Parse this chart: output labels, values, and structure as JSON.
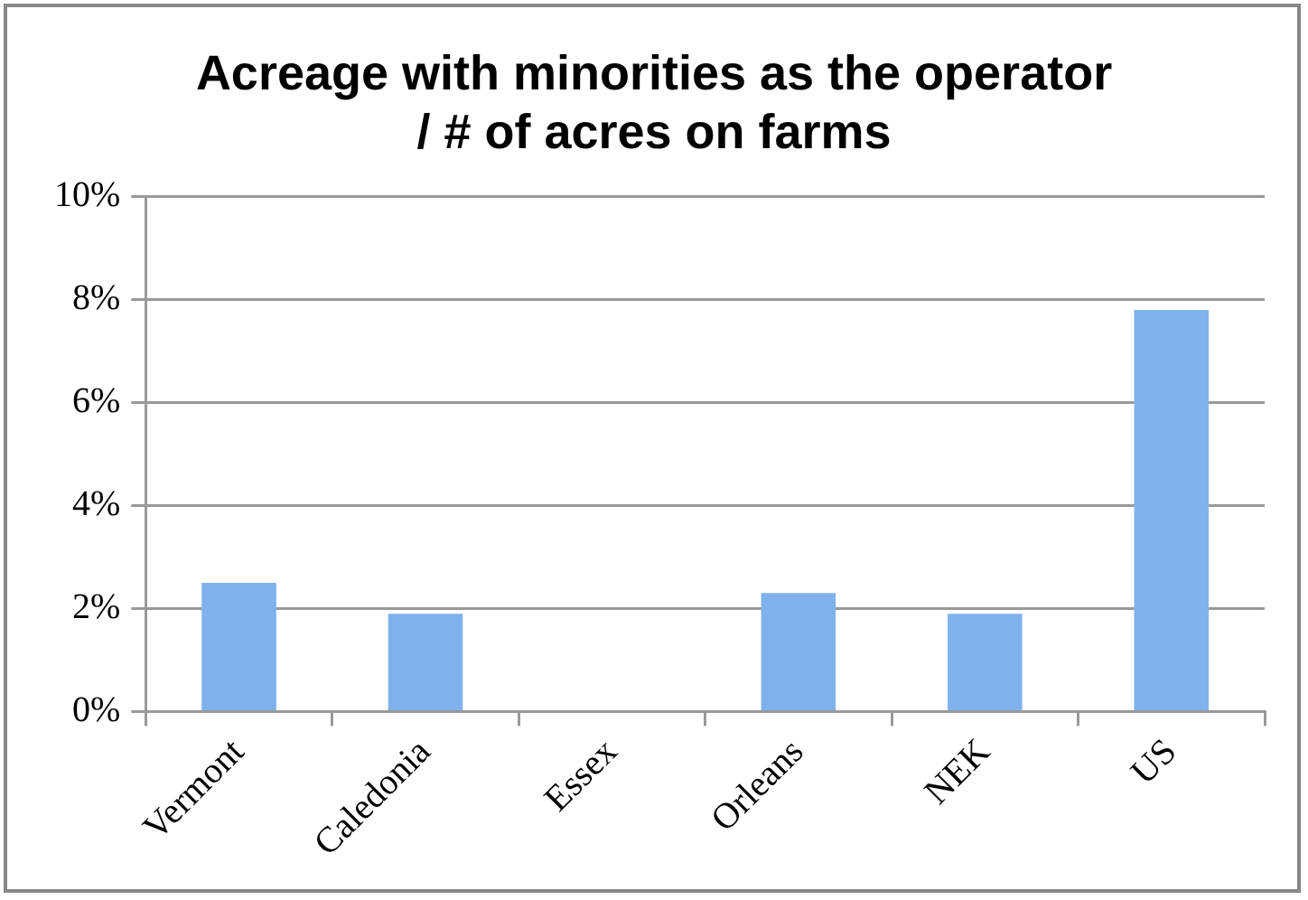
{
  "chart_data": {
    "type": "bar",
    "title": "Acreage with minorities as the operator / # of acres on farms",
    "categories": [
      "Vermont",
      "Caledonia",
      "Essex",
      "Orleans",
      "NEK",
      "US"
    ],
    "values": [
      2.5,
      1.9,
      0,
      2.3,
      1.9,
      7.8
    ],
    "color": "#7fb2ec",
    "ylim": [
      0,
      10
    ],
    "yticks": [
      {
        "value": 0,
        "label": "0%"
      },
      {
        "value": 2,
        "label": "2%"
      },
      {
        "value": 4,
        "label": "4%"
      },
      {
        "value": 6,
        "label": "6%"
      },
      {
        "value": 8,
        "label": "8%"
      },
      {
        "value": 10,
        "label": "10%"
      }
    ],
    "grid": "y",
    "legend": false
  }
}
